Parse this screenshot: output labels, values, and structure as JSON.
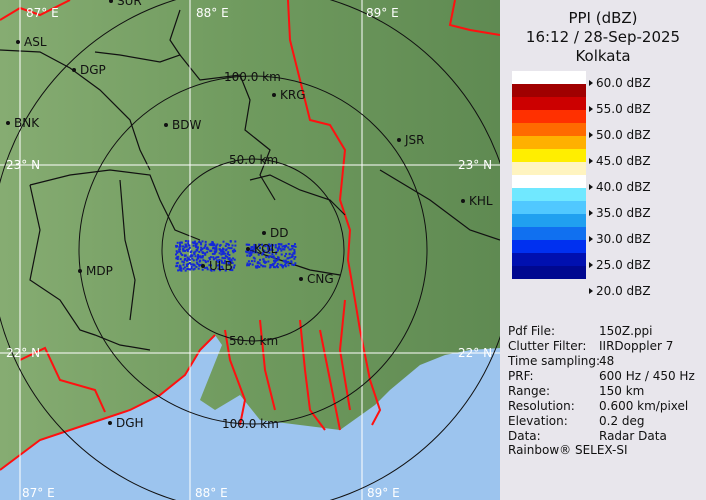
{
  "header": {
    "product": "PPI (dBZ)",
    "datetime": "16:12 / 28-Sep-2025",
    "site": "Kolkata"
  },
  "legend": [
    {
      "label": "60.0 dBZ",
      "color": "#ffffff"
    },
    {
      "label": "55.0 dBZ",
      "color": "#a00000"
    },
    {
      "label": "50.0 dBZ",
      "color": "#ff3000"
    },
    {
      "label": "45.0 dBZ",
      "color": "#ffa000"
    },
    {
      "label": "40.0 dBZ",
      "color": "#fff4c0"
    },
    {
      "label": "35.0 dBZ",
      "color": "#70e8ff"
    },
    {
      "label": "30.0 dBZ",
      "color": "#1890f0"
    },
    {
      "label": "25.0 dBZ",
      "color": "#0020e0"
    },
    {
      "label": "20.0 dBZ",
      "color": "#000890"
    }
  ],
  "legend_bands": [
    "#ffffff",
    "#a00000",
    "#cc0000",
    "#ff3000",
    "#ff6a00",
    "#ffb000",
    "#ffee00",
    "#fff4c0",
    "#ffffff",
    "#70e8ff",
    "#50c8ff",
    "#20a0f0",
    "#1070f0",
    "#0030f0",
    "#0010b0",
    "#000890"
  ],
  "info": [
    {
      "key": "Pdf File:",
      "value": "150Z.ppi"
    },
    {
      "key": "Clutter Filter:",
      "value": "IIRDoppler 7"
    },
    {
      "key": "Time sampling:",
      "value": "48"
    },
    {
      "key": "PRF:",
      "value": "600 Hz / 450 Hz"
    },
    {
      "key": "Range:",
      "value": "150 km"
    },
    {
      "key": "Resolution:",
      "value": "0.600 km/pixel"
    },
    {
      "key": "Elevation:",
      "value": "0.2 deg"
    },
    {
      "key": "Data:",
      "value": "Radar Data"
    }
  ],
  "footer": "Rainbow® SELEX-SI",
  "map": {
    "grid_labels": {
      "lon87": "87° E",
      "lon88": "88° E",
      "lon89": "89° E",
      "lat23": "23° N",
      "lat22": "22° N"
    },
    "range_rings": {
      "r50": "50.0 km",
      "r100": "100.0 km"
    },
    "cities": [
      "ASL",
      "DGP",
      "SUR",
      "KRG",
      "BDW",
      "BNK",
      "JSR",
      "KHL",
      "MDP",
      "DD",
      "KOL",
      "ULB",
      "CNG",
      "DGH"
    ],
    "colors": {
      "land": "#6f9a5e",
      "sea": "#9cc4ee",
      "border": "#ff1010",
      "district": "#111111",
      "grid": "#ffffff",
      "echo": "#1428d8"
    }
  }
}
